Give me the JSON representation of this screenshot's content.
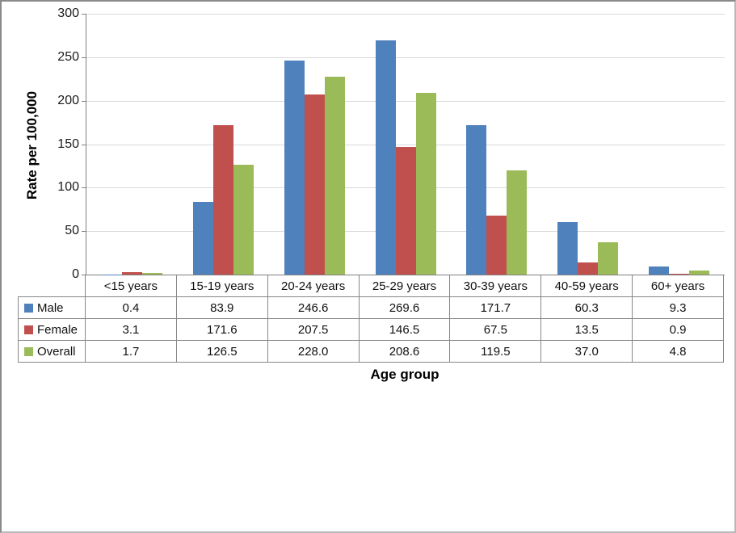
{
  "chart_data": {
    "type": "bar",
    "title": "",
    "categories": [
      "<15 years",
      "15-19 years",
      "20-24 years",
      "25-29 years",
      "30-39 years",
      "40-59 years",
      "60+ years"
    ],
    "series": [
      {
        "name": "Male",
        "color": "#4F81BD",
        "values": [
          0.4,
          83.9,
          246.6,
          269.6,
          171.7,
          60.3,
          9.3
        ]
      },
      {
        "name": "Female",
        "color": "#C0504D",
        "values": [
          3.1,
          171.6,
          207.5,
          146.5,
          67.5,
          13.5,
          0.9
        ]
      },
      {
        "name": "Overall",
        "color": "#9BBB59",
        "values": [
          1.7,
          126.5,
          228.0,
          208.6,
          119.5,
          37.0,
          4.8
        ]
      }
    ],
    "xlabel": "Age group",
    "ylabel": "Rate per 100,000",
    "ylim": [
      0,
      300
    ],
    "ytick_step": 50,
    "ytick_labels": [
      "0",
      "50",
      "100",
      "150",
      "200",
      "250",
      "300"
    ],
    "value_decimals": 1,
    "grid": true,
    "legend_position": "table-left-column",
    "colors": {
      "axis_line": "#808080",
      "gridline": "#D9D9D9",
      "table_border": "#878787",
      "text": "#111111"
    }
  }
}
